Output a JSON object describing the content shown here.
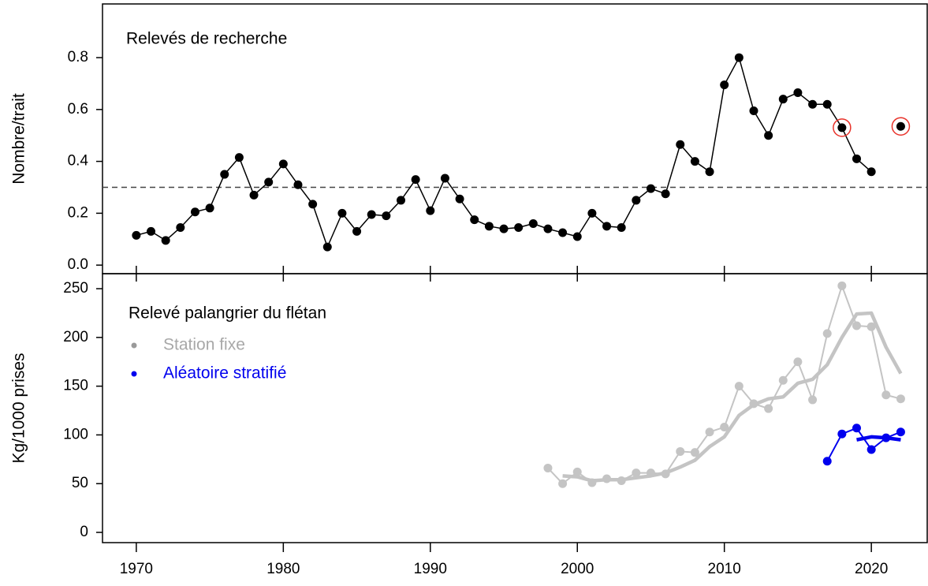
{
  "chart_data": [
    {
      "type": "line",
      "title": "Relevés de recherche",
      "y_label": "Nombre/trait",
      "x": [
        1970,
        1971,
        1972,
        1973,
        1974,
        1975,
        1976,
        1977,
        1978,
        1979,
        1980,
        1981,
        1982,
        1983,
        1984,
        1985,
        1986,
        1987,
        1988,
        1989,
        1990,
        1991,
        1992,
        1993,
        1994,
        1995,
        1996,
        1997,
        1998,
        1999,
        2000,
        2001,
        2002,
        2003,
        2004,
        2005,
        2006,
        2007,
        2008,
        2009,
        2010,
        2011,
        2012,
        2013,
        2014,
        2015,
        2016,
        2017,
        2018,
        2019,
        2020,
        2021,
        2022
      ],
      "series": [
        {
          "color": "#000000",
          "values": [
            0.115,
            0.13,
            0.095,
            0.145,
            0.205,
            0.22,
            0.35,
            0.415,
            0.27,
            0.32,
            0.39,
            0.31,
            0.235,
            0.07,
            0.2,
            0.13,
            0.195,
            0.19,
            0.25,
            0.33,
            0.21,
            0.335,
            0.255,
            0.175,
            0.15,
            0.14,
            0.145,
            0.16,
            0.14,
            0.125,
            0.11,
            0.2,
            0.15,
            0.145,
            0.25,
            0.295,
            0.275,
            0.465,
            0.4,
            0.36,
            0.695,
            0.8,
            0.595,
            0.5,
            0.64,
            0.665,
            0.62,
            0.62,
            0.53,
            0.41,
            0.36,
            null,
            0.535
          ]
        }
      ],
      "highlight_x": [
        2018,
        2022
      ],
      "highlight_color": "#e8322a",
      "ref_line": 0.3,
      "xlim": [
        1967.7,
        2023.8
      ],
      "ylim": [
        -0.033,
        1.007
      ],
      "yticks": [
        {
          "value": 0,
          "label": "0.0"
        },
        0.2,
        0.4,
        0.6,
        0.8
      ]
    },
    {
      "type": "line",
      "title": "Relevé palangrier du flétan",
      "y_label": "Kg/1000 prises",
      "x": [
        1998,
        1999,
        2000,
        2001,
        2002,
        2003,
        2004,
        2005,
        2006,
        2007,
        2008,
        2009,
        2010,
        2011,
        2012,
        2013,
        2014,
        2015,
        2016,
        2017,
        2018,
        2019,
        2020,
        2021,
        2022
      ],
      "series": [
        {
          "name": "Station fixe",
          "color": "#c4c4c4",
          "legend_color": "#9a9a9a",
          "text_color": "#a8a8a8",
          "values": [
            66,
            50,
            62,
            51,
            55,
            53,
            61,
            61,
            60,
            83,
            82,
            103,
            108,
            150,
            132,
            127,
            156,
            175,
            136,
            204,
            253,
            212,
            211,
            141,
            137
          ],
          "trend": [
            null,
            58,
            57,
            53,
            54,
            54,
            56,
            58,
            61,
            67,
            74,
            88,
            98,
            120,
            131,
            137,
            139,
            153,
            157,
            172,
            200,
            224,
            225,
            190,
            163
          ]
        },
        {
          "name": "Aléatoire stratifié",
          "color": "#0000ee",
          "legend_color": "#0000ee",
          "text_color": "#0000ee",
          "values": [
            null,
            null,
            null,
            null,
            null,
            null,
            null,
            null,
            null,
            null,
            null,
            null,
            null,
            null,
            null,
            null,
            null,
            null,
            null,
            73,
            101,
            107,
            85,
            97,
            103
          ],
          "trend": [
            null,
            null,
            null,
            null,
            null,
            null,
            null,
            null,
            null,
            null,
            null,
            null,
            null,
            null,
            null,
            null,
            null,
            null,
            null,
            null,
            null,
            95,
            98,
            97,
            95
          ]
        }
      ],
      "xlim": [
        1967.7,
        2023.8
      ],
      "xticks": [
        1970,
        1980,
        1990,
        2000,
        2010,
        2020
      ],
      "ylim": [
        -10.5,
        265.4
      ],
      "yticks": [
        0,
        50,
        100,
        150,
        200,
        250
      ]
    }
  ]
}
